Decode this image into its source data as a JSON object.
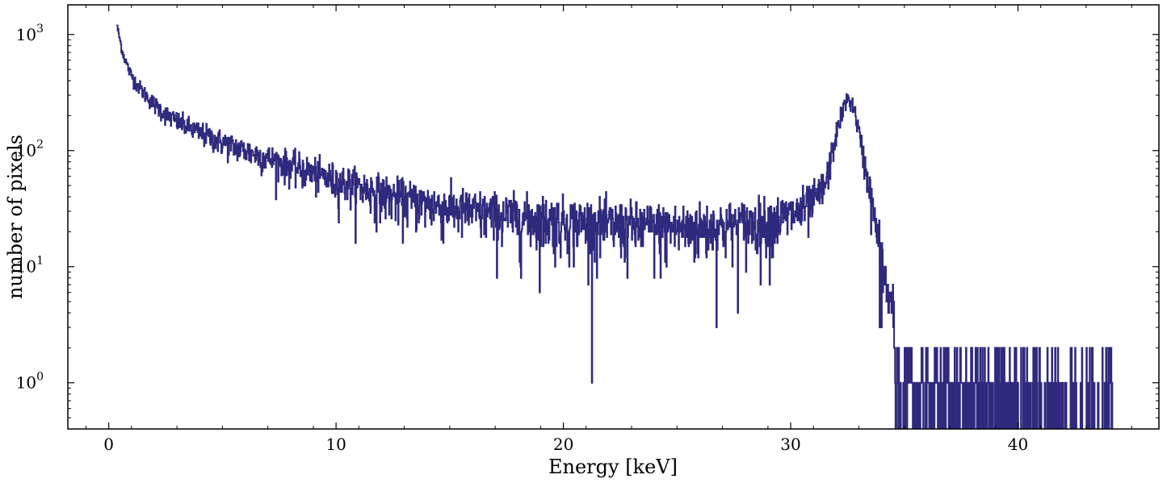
{
  "chart_data": {
    "type": "line",
    "title": "",
    "xlabel": "Energy [keV]",
    "ylabel": "number of pixels",
    "xlim": [
      -1.8,
      46.2
    ],
    "ylim": [
      0.4,
      1800
    ],
    "yscale": "log",
    "grid": false,
    "x_ticks": [
      0,
      10,
      20,
      30,
      40
    ],
    "x_tick_labels": [
      "0",
      "10",
      "20",
      "30",
      "40"
    ],
    "y_ticks": [
      1,
      10,
      100,
      1000
    ],
    "y_tick_labels": [
      {
        "base": "10",
        "exp": "0"
      },
      {
        "base": "10",
        "exp": "1"
      },
      {
        "base": "10",
        "exp": "2"
      },
      {
        "base": "10",
        "exp": "3"
      }
    ],
    "line_color": "#2e2a7d",
    "series": [
      {
        "name": "",
        "points": [
          [
            0.35,
            1200
          ],
          [
            0.6,
            700
          ],
          [
            0.9,
            480
          ],
          [
            1.2,
            380
          ],
          [
            1.5,
            320
          ],
          [
            2.0,
            250
          ],
          [
            2.5,
            205
          ],
          [
            3.0,
            178
          ],
          [
            4.0,
            142
          ],
          [
            5.0,
            118
          ],
          [
            6.0,
            100
          ],
          [
            7.0,
            86
          ],
          [
            8.0,
            74
          ],
          [
            9.0,
            64
          ],
          [
            10.0,
            55
          ],
          [
            11.0,
            49
          ],
          [
            12.0,
            43
          ],
          [
            13.0,
            38
          ],
          [
            14.0,
            35
          ],
          [
            15.0,
            32
          ],
          [
            16.0,
            30
          ],
          [
            17.0,
            28
          ],
          [
            18.0,
            27
          ],
          [
            19.0,
            26
          ],
          [
            20.0,
            25
          ],
          [
            21.0,
            24
          ],
          [
            22.0,
            23
          ],
          [
            23.0,
            22.5
          ],
          [
            24.0,
            22
          ],
          [
            25.0,
            21.5
          ],
          [
            26.0,
            22
          ],
          [
            27.0,
            22.5
          ],
          [
            28.0,
            23.5
          ],
          [
            29.0,
            25
          ],
          [
            30.0,
            28
          ],
          [
            30.5,
            31
          ],
          [
            31.0,
            36
          ],
          [
            31.5,
            50
          ],
          [
            32.0,
            140
          ],
          [
            32.3,
            230
          ],
          [
            32.5,
            280
          ],
          [
            32.7,
            255
          ],
          [
            32.9,
            180
          ],
          [
            33.1,
            110
          ],
          [
            33.4,
            55
          ],
          [
            33.7,
            24
          ],
          [
            34.0,
            11
          ],
          [
            34.3,
            5.5
          ],
          [
            34.6,
            3.2
          ],
          [
            35.0,
            2.2
          ],
          [
            35.5,
            1.6
          ],
          [
            36.0,
            1.4
          ],
          [
            37.0,
            1.3
          ],
          [
            38.0,
            1.2
          ],
          [
            39.0,
            1.1
          ],
          [
            40.0,
            1.05
          ],
          [
            41.0,
            1.0
          ],
          [
            42.0,
            1.0
          ],
          [
            43.0,
            1.0
          ],
          [
            44.2,
            1.0
          ]
        ]
      }
    ]
  }
}
